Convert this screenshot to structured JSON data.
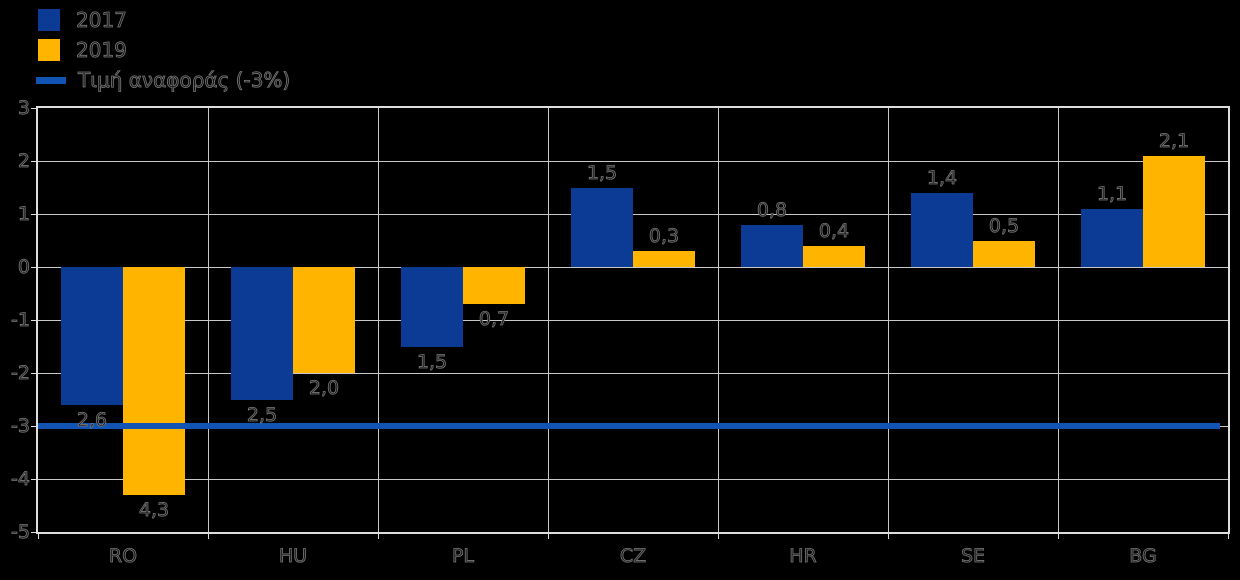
{
  "chart_data": {
    "type": "bar",
    "title": "",
    "xlabel": "",
    "ylabel": "",
    "categories": [
      "RO",
      "HU",
      "PL",
      "CZ",
      "HR",
      "SE",
      "BG"
    ],
    "series": [
      {
        "name": "2017",
        "color": "#0B3B94",
        "values": [
          -2.6,
          -2.5,
          -1.5,
          1.5,
          0.8,
          1.4,
          1.1
        ],
        "value_labels": [
          "2,6",
          "2,5",
          "1,5",
          "1,5",
          "0,8",
          "1,4",
          "1,1"
        ]
      },
      {
        "name": "2019",
        "color": "#FFB400",
        "values": [
          -4.3,
          -2.0,
          -0.7,
          0.3,
          0.4,
          0.5,
          2.1
        ],
        "value_labels": [
          "4,3",
          "2,0",
          "0,7",
          "0,3",
          "0,4",
          "0,5",
          "2,1"
        ]
      }
    ],
    "reference_line": {
      "value": -3,
      "label": "Τιμή αναφοράς (-3%)",
      "color": "#1254B4"
    },
    "ylim": [
      -5,
      3
    ],
    "y_ticks": [
      3,
      2,
      1,
      0,
      -1,
      -2,
      -3,
      -4,
      -5
    ],
    "y_tick_labels": [
      "3",
      "2",
      "1",
      "0",
      "-1",
      "-2",
      "-3",
      "-4",
      "-5"
    ],
    "grid": true,
    "legend_position": "top-left",
    "colors": {
      "background": "#000000",
      "gridline": "#c8c8c8",
      "frame": "#dedede",
      "ghost_text_outline": "#7a7a7a"
    }
  }
}
